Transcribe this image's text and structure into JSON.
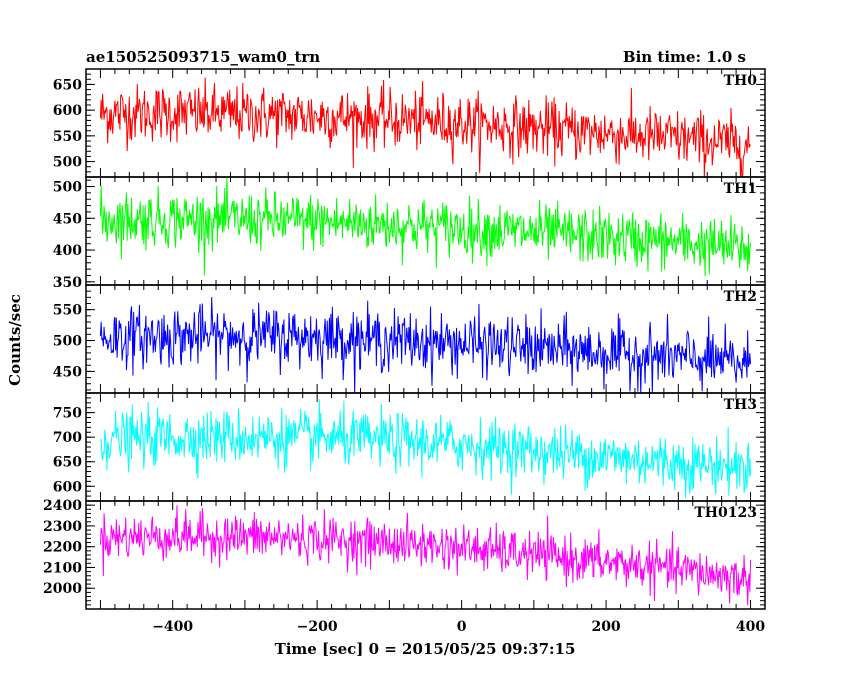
{
  "header": {
    "title": "ae150525093715_wam0_trn",
    "bin_time": "Bin time: 1.0 s"
  },
  "chart_data": {
    "type": "line",
    "title": "ae150525093715_wam0_trn",
    "subtitle": "Bin time: 1.0 s",
    "xlabel": "Time [sec] 0 = 2015/05/25 09:37:15",
    "ylabel": "Counts/sec",
    "xlim": [
      -520,
      420
    ],
    "x_ticks": [
      -400,
      -200,
      0,
      200,
      400
    ],
    "x_tick_labels": [
      "−400",
      "−200",
      "0",
      "200",
      "400"
    ],
    "grid": false,
    "x_range_data": [
      -500,
      400
    ],
    "bin_time_s": 1.0,
    "series": [
      {
        "name": "TH0",
        "color": "#ff0000",
        "ylim": [
          470,
          680
        ],
        "y_ticks": [
          500,
          550,
          600,
          650
        ],
        "y_tick_labels": [
          "500",
          "550",
          "600",
          "650"
        ],
        "trend": {
          "x": [
            -500,
            -400,
            -300,
            -200,
            -100,
            0,
            100,
            200,
            300,
            400
          ],
          "mean": [
            593,
            595,
            592,
            588,
            582,
            575,
            565,
            555,
            545,
            532
          ]
        },
        "noise_sd": 28
      },
      {
        "name": "TH1",
        "color": "#00ff00",
        "ylim": [
          345,
          515
        ],
        "y_ticks": [
          350,
          400,
          450,
          500
        ],
        "y_tick_labels": [
          "350",
          "400",
          "450",
          "500"
        ],
        "trend": {
          "x": [
            -500,
            -400,
            -300,
            -200,
            -100,
            0,
            100,
            200,
            300,
            400
          ],
          "mean": [
            448,
            449,
            448,
            445,
            440,
            434,
            428,
            420,
            412,
            402
          ]
        },
        "noise_sd": 22
      },
      {
        "name": "TH2",
        "color": "#0000ff",
        "ylim": [
          415,
          590
        ],
        "y_ticks": [
          450,
          500,
          550
        ],
        "y_tick_labels": [
          "450",
          "500",
          "550"
        ],
        "trend": {
          "x": [
            -500,
            -400,
            -300,
            -200,
            -100,
            0,
            100,
            200,
            300,
            400
          ],
          "mean": [
            505,
            507,
            508,
            506,
            500,
            495,
            488,
            480,
            472,
            462
          ]
        },
        "noise_sd": 24
      },
      {
        "name": "TH3",
        "color": "#00ffff",
        "ylim": [
          570,
          790
        ],
        "y_ticks": [
          600,
          650,
          700,
          750
        ],
        "y_tick_labels": [
          "600",
          "650",
          "700",
          "750"
        ],
        "trend": {
          "x": [
            -500,
            -400,
            -300,
            -200,
            -100,
            0,
            100,
            200,
            300,
            400
          ],
          "mean": [
            695,
            700,
            700,
            698,
            693,
            685,
            672,
            660,
            648,
            638
          ]
        },
        "noise_sd": 28
      },
      {
        "name": "TH0123",
        "color": "#ff00ff",
        "ylim": [
          1900,
          2420
        ],
        "y_ticks": [
          2000,
          2100,
          2200,
          2300,
          2400
        ],
        "y_tick_labels": [
          "2000",
          "2100",
          "2200",
          "2300",
          "2400"
        ],
        "trend": {
          "x": [
            -500,
            -400,
            -300,
            -200,
            -100,
            0,
            100,
            200,
            300,
            400
          ],
          "mean": [
            2245,
            2250,
            2248,
            2238,
            2218,
            2195,
            2160,
            2125,
            2090,
            2040
          ]
        },
        "noise_sd": 55
      }
    ]
  }
}
